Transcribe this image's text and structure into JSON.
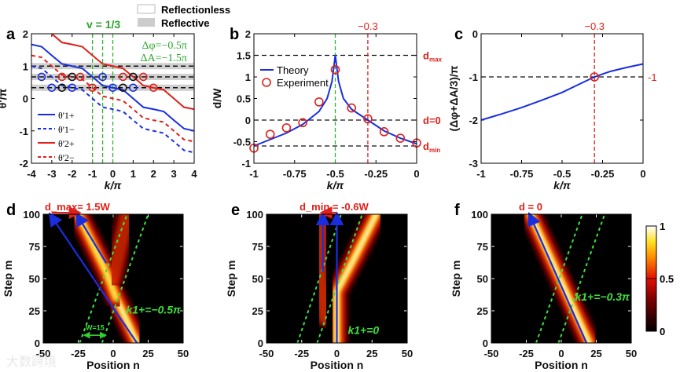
{
  "chart_data": [
    {
      "panel": "a",
      "type": "line",
      "xlabel": "k/π",
      "ylabel": "θ'/π",
      "xlim": [
        -4,
        4
      ],
      "ylim": [
        -2,
        2
      ],
      "xticks": [
        "-4",
        "-3",
        "-2",
        "-1",
        "0",
        "1",
        "2",
        "3",
        "4"
      ],
      "yticks": [
        "-2",
        "-1",
        "0",
        "1",
        "2"
      ],
      "title": "v = 1/3",
      "annotations": [
        "Δφ=−0.5π",
        "ΔA=−1.5π"
      ],
      "legend_top": [
        {
          "label": "Reflectionless"
        },
        {
          "label": "Reflective"
        }
      ],
      "x": [
        -4,
        -3.5,
        -3,
        -2.5,
        -2,
        -1.5,
        -1,
        -0.5,
        0,
        0.5,
        1,
        1.5,
        2,
        2.5,
        3,
        3.5,
        4
      ],
      "series": [
        {
          "name": "θ'1+",
          "color": "#1a2ee0",
          "dash": false,
          "values": [
            1.67,
            1.6,
            1.33,
            1.07,
            1.0,
            0.93,
            0.67,
            0.4,
            0.33,
            0.27,
            0,
            -0.27,
            -0.33,
            -0.4,
            -0.67,
            -0.93,
            -1.0
          ]
        },
        {
          "name": "θ'1−",
          "color": "#1a2ee0",
          "dash": true,
          "values": [
            1.0,
            0.93,
            0.67,
            0.4,
            0.33,
            0.27,
            0,
            -0.27,
            -0.33,
            -0.4,
            -0.67,
            -0.93,
            -1.0,
            -1.07,
            -1.33,
            -1.6,
            -1.67
          ]
        },
        {
          "name": "θ'2+",
          "color": "#e0201a",
          "dash": false,
          "values": [
            2.33,
            2.27,
            2.0,
            1.73,
            1.67,
            1.6,
            1.33,
            1.07,
            1.0,
            0.93,
            0.67,
            0.4,
            0.33,
            0.27,
            0,
            -0.27,
            -0.33
          ]
        },
        {
          "name": "θ'2−",
          "color": "#e0201a",
          "dash": true,
          "values": [
            1.33,
            1.27,
            1.0,
            0.73,
            0.67,
            0.6,
            0.33,
            0.07,
            0,
            -0.07,
            -0.33,
            -0.6,
            -0.67,
            -0.73,
            -1.0,
            -1.27,
            -1.33
          ]
        }
      ],
      "hlines": [
        1,
        0.667,
        0.333
      ],
      "vlines": [
        -1,
        -0.5,
        0
      ],
      "markers": [
        {
          "x": -3.5,
          "y": 0.667,
          "color": "#1a2ee0"
        },
        {
          "x": -3,
          "y": 0.333,
          "color": "#1a2ee0"
        },
        {
          "x": -2,
          "y": 0.333,
          "color": "#1a2ee0"
        },
        {
          "x": -0.5,
          "y": 0.667,
          "color": "#1a2ee0"
        },
        {
          "x": 0,
          "y": 0.333,
          "color": "#1a2ee0"
        },
        {
          "x": 1,
          "y": 0.333,
          "color": "#1a2ee0"
        },
        {
          "x": -2.5,
          "y": 0.333,
          "color": "#111111"
        },
        {
          "x": -2,
          "y": 0.667,
          "color": "#111111"
        },
        {
          "x": 0.5,
          "y": 0.333,
          "color": "#111111"
        },
        {
          "x": 1,
          "y": 0.667,
          "color": "#111111"
        },
        {
          "x": -2.5,
          "y": 0.667,
          "color": "#e0201a"
        },
        {
          "x": -1.6,
          "y": 0.667,
          "color": "#e0201a"
        },
        {
          "x": -1,
          "y": 0.333,
          "color": "#e0201a"
        },
        {
          "x": 0.5,
          "y": 0.667,
          "color": "#e0201a"
        },
        {
          "x": 1.5,
          "y": 0.667,
          "color": "#e0201a"
        },
        {
          "x": 2,
          "y": 0.333,
          "color": "#e0201a"
        }
      ]
    },
    {
      "panel": "b",
      "type": "line",
      "xlabel": "k/π",
      "ylabel": "d/W",
      "xlim": [
        -1,
        0
      ],
      "ylim": [
        -1,
        2
      ],
      "xticks": [
        "-1",
        "-0.75",
        "-0.5",
        "-0.25",
        "0"
      ],
      "yticks": [
        "-1",
        "-0.5",
        "0",
        "0.5",
        "1",
        "1.5",
        "2"
      ],
      "top_label": "−0.3",
      "right_labels": [
        "d_max",
        "d=0",
        "d_min"
      ],
      "legend": [
        "Theory",
        "Experiment"
      ],
      "theory": {
        "x": [
          -1,
          -0.9,
          -0.8,
          -0.7,
          -0.6,
          -0.55,
          -0.52,
          -0.5,
          -0.48,
          -0.45,
          -0.4,
          -0.3,
          -0.2,
          -0.1,
          0
        ],
        "y": [
          -0.6,
          -0.45,
          -0.3,
          -0.1,
          0.2,
          0.5,
          0.9,
          1.5,
          0.9,
          0.5,
          0.25,
          0,
          -0.25,
          -0.42,
          -0.55
        ]
      },
      "experiment": {
        "x": [
          -1,
          -0.9,
          -0.8,
          -0.7,
          -0.6,
          -0.5,
          -0.4,
          -0.3,
          -0.2,
          -0.1,
          0
        ],
        "y": [
          -0.65,
          -0.33,
          -0.18,
          -0.06,
          0.42,
          1.17,
          0.28,
          0.03,
          -0.27,
          -0.42,
          -0.53
        ]
      },
      "hlines": [
        1.5,
        0,
        -0.6
      ],
      "vlines": [
        {
          "x": -0.5,
          "color": "#2fb52f"
        },
        {
          "x": -0.3,
          "color": "#e0201a"
        }
      ]
    },
    {
      "panel": "c",
      "type": "line",
      "xlabel": "k/π",
      "ylabel": "(Δφ+ΔA/3)/π",
      "xlim": [
        -1,
        0
      ],
      "ylim": [
        -3,
        0
      ],
      "xticks": [
        "-1",
        "-0.75",
        "-0.5",
        "-0.25",
        "0"
      ],
      "yticks": [
        "-3",
        "-2",
        "-1",
        "0"
      ],
      "top_label": "−0.3",
      "right_label": "-1",
      "x": [
        -1,
        -0.875,
        -0.75,
        -0.625,
        -0.5,
        -0.4,
        -0.3,
        -0.2,
        -0.1,
        0
      ],
      "y": [
        -2.0,
        -1.86,
        -1.71,
        -1.54,
        -1.36,
        -1.18,
        -1.0,
        -0.87,
        -0.78,
        -0.7
      ],
      "marker": {
        "x": -0.3,
        "y": -1
      }
    },
    {
      "panel": "d",
      "type": "heatmap",
      "xlabel": "Position n",
      "ylabel": "Step m",
      "xlim": [
        -50,
        50
      ],
      "ylim": [
        0,
        100
      ],
      "xticks": [
        "-50",
        "-25",
        "0",
        "25",
        "50"
      ],
      "yticks": [
        "0",
        "25",
        "50",
        "75",
        "100"
      ],
      "title": "d_max= 1.5W",
      "annotation": "k1+=−0.5π",
      "width_label": "W=15",
      "beams": [
        {
          "points": [
            [
              17,
              0
            ],
            [
              0,
              40
            ]
          ],
          "intensity": 1
        },
        {
          "points": [
            [
              2,
              35
            ],
            [
              -5,
              55
            ],
            [
              -25,
              100
            ]
          ],
          "intensity": 0.75
        },
        {
          "points": [
            [
              0,
              50
            ],
            [
              10,
              100
            ]
          ],
          "intensity": 0.3
        }
      ],
      "arrows": [
        [
          [
            17,
            0
          ],
          [
            -44,
            100
          ]
        ],
        [
          [
            -5,
            62
          ],
          [
            -25,
            100
          ]
        ]
      ],
      "guides": [
        [
          [
            -24,
            0
          ],
          [
            10,
            100
          ]
        ],
        [
          [
            -8,
            0
          ],
          [
            25,
            100
          ]
        ]
      ]
    },
    {
      "panel": "e",
      "type": "heatmap",
      "xlabel": "Position n",
      "ylabel": "Step m",
      "xlim": [
        -50,
        50
      ],
      "ylim": [
        0,
        100
      ],
      "xticks": [
        "-50",
        "-25",
        "0",
        "25",
        "50"
      ],
      "yticks": [
        "0",
        "25",
        "50",
        "75",
        "100"
      ],
      "title": "d_min = -0.6W",
      "annotation": "k1+=0",
      "beams": [
        {
          "points": [
            [
              0,
              0
            ],
            [
              0,
              40
            ],
            [
              12,
              65
            ],
            [
              28,
              100
            ]
          ],
          "intensity": 1
        },
        {
          "points": [
            [
              -8,
              20
            ],
            [
              -12,
              50
            ],
            [
              -12,
              100
            ]
          ],
          "intensity": 0.35
        }
      ],
      "arrows": [
        [
          [
            0,
            0
          ],
          [
            0,
            100
          ]
        ],
        [
          [
            -10,
            55
          ],
          [
            -10,
            100
          ]
        ]
      ],
      "guides": [
        [
          [
            -28,
            0
          ],
          [
            3,
            100
          ]
        ],
        [
          [
            -14,
            0
          ],
          [
            18,
            100
          ]
        ]
      ]
    },
    {
      "panel": "f",
      "type": "heatmap",
      "xlabel": "Position n",
      "ylabel": "Step m",
      "xlim": [
        -50,
        50
      ],
      "ylim": [
        0,
        100
      ],
      "xticks": [
        "-50",
        "-25",
        "0",
        "25",
        "50"
      ],
      "yticks": [
        "0",
        "25",
        "50",
        "75",
        "100"
      ],
      "title": "d = 0",
      "annotation": "k1+=−0.3π",
      "beams": [
        {
          "points": [
            [
              20,
              0
            ],
            [
              -22,
              100
            ]
          ],
          "intensity": 1
        }
      ],
      "arrows": [
        [
          [
            18,
            0
          ],
          [
            -22,
            100
          ]
        ]
      ],
      "guides": [
        [
          [
            -18,
            0
          ],
          [
            15,
            100
          ]
        ],
        [
          [
            -2,
            0
          ],
          [
            31,
            100
          ]
        ]
      ],
      "colorbar": {
        "ticks": [
          "0",
          "0.5",
          "1"
        ],
        "range": [
          0,
          1
        ]
      }
    }
  ],
  "panel_labels": [
    "a",
    "b",
    "c",
    "d",
    "e",
    "f"
  ],
  "watermark": "大数跨境"
}
